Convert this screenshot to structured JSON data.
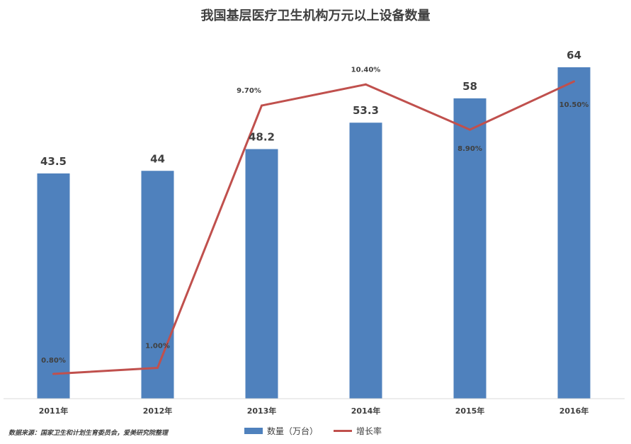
{
  "chart_data": {
    "type": "bar",
    "title": "我国基层医疗卫生机构万元以上设备数量",
    "categories": [
      "2011年",
      "2012年",
      "2013年",
      "2014年",
      "2015年",
      "2016年"
    ],
    "series": [
      {
        "name": "数量（万台）",
        "type": "bar",
        "values": [
          43.5,
          44,
          48.2,
          53.3,
          58,
          64
        ],
        "value_labels": [
          "43.5",
          "44",
          "48.2",
          "53.3",
          "58",
          "64"
        ],
        "color": "#4f81bd"
      },
      {
        "name": "增长率",
        "type": "line",
        "values": [
          0.8,
          1.0,
          9.7,
          10.4,
          8.9,
          10.5
        ],
        "value_labels": [
          "0.80%",
          "1.00%",
          "9.70%",
          "10.40%",
          "8.90%",
          "10.50%"
        ],
        "color": "#c0504d"
      }
    ],
    "ylim_bar": [
      0,
      70
    ],
    "ylim_line": [
      0,
      12
    ],
    "grid": false,
    "legend": "bottom"
  },
  "source_note": "数据来源：国家卫生和计划生育委员会，爱美研究院整理"
}
